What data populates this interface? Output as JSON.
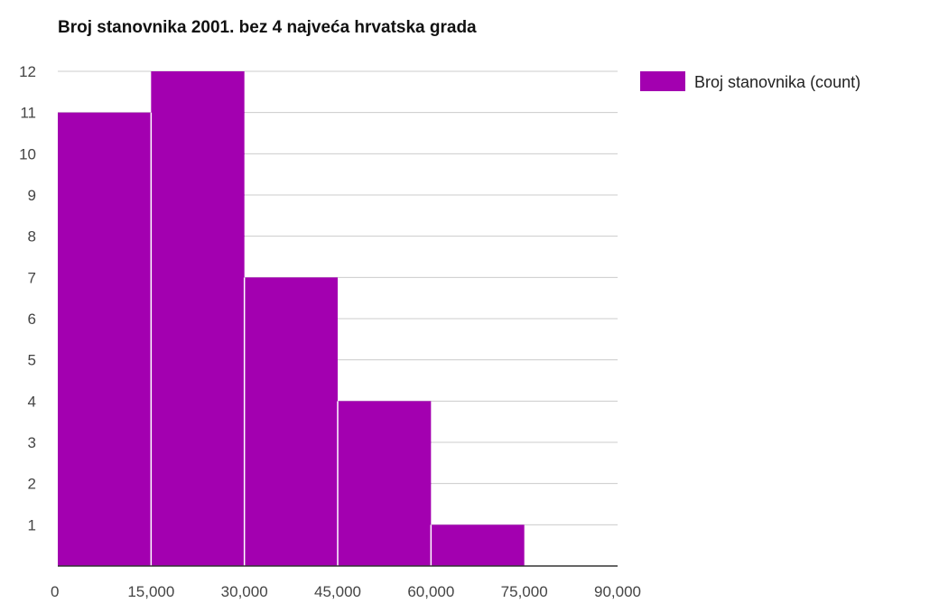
{
  "chart_data": {
    "type": "bar",
    "title": "Broj stanovnika 2001. bez 4 najveća hrvatska grada",
    "series": [
      {
        "name": "Broj stanovnika (count)",
        "color": "#a300b0"
      }
    ],
    "bins": [
      {
        "x0": 0,
        "x1": 15000,
        "count": 11
      },
      {
        "x0": 15000,
        "x1": 30000,
        "count": 12
      },
      {
        "x0": 30000,
        "x1": 45000,
        "count": 7
      },
      {
        "x0": 45000,
        "x1": 60000,
        "count": 4
      },
      {
        "x0": 60000,
        "x1": 75000,
        "count": 1
      }
    ],
    "x_ticks": [
      "0",
      "15,000",
      "30,000",
      "45,000",
      "60,000",
      "75,000",
      "90,000"
    ],
    "x_tick_values": [
      0,
      15000,
      30000,
      45000,
      60000,
      75000,
      90000
    ],
    "y_ticks": [
      "1",
      "2",
      "3",
      "4",
      "5",
      "6",
      "7",
      "8",
      "9",
      "10",
      "11",
      "12"
    ],
    "y_tick_values": [
      1,
      2,
      3,
      4,
      5,
      6,
      7,
      8,
      9,
      10,
      11,
      12
    ],
    "xlim": [
      0,
      90000
    ],
    "ylim": [
      0,
      12
    ],
    "xlabel": "",
    "ylabel": "",
    "grid": true,
    "legend_position": "top-right"
  }
}
